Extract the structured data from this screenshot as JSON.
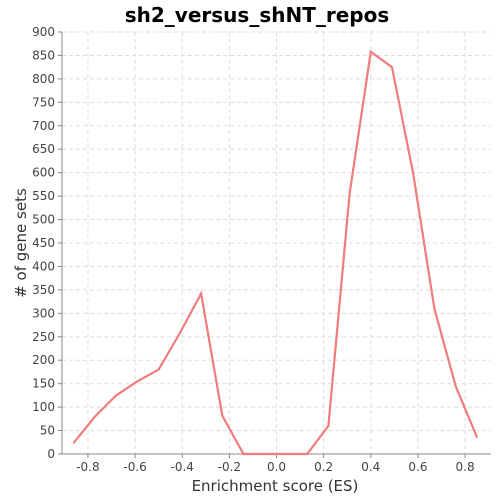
{
  "chart_data": {
    "type": "line",
    "title": "sh2_versus_shNT_repos",
    "xlabel": "Enrichment score (ES)",
    "ylabel": "# of gene sets",
    "xlim": [
      -0.91,
      0.91
    ],
    "ylim": [
      0,
      900
    ],
    "x_ticks": [
      "-0.8",
      "-0.6",
      "-0.4",
      "-0.2",
      "0.0",
      "0.2",
      "0.4",
      "0.6",
      "0.8"
    ],
    "y_ticks": [
      "0",
      "50",
      "100",
      "150",
      "200",
      "250",
      "300",
      "350",
      "400",
      "450",
      "500",
      "550",
      "600",
      "650",
      "700",
      "750",
      "800",
      "850",
      "900"
    ],
    "grid": true,
    "series": [
      {
        "color": "#f07c7c",
        "points": [
          {
            "x": -0.86,
            "y": 24
          },
          {
            "x": -0.77,
            "y": 80
          },
          {
            "x": -0.68,
            "y": 125
          },
          {
            "x": -0.59,
            "y": 155
          },
          {
            "x": -0.5,
            "y": 180
          },
          {
            "x": -0.41,
            "y": 258
          },
          {
            "x": -0.32,
            "y": 342
          },
          {
            "x": -0.23,
            "y": 82
          },
          {
            "x": -0.14,
            "y": 0
          },
          {
            "x": -0.05,
            "y": 0
          },
          {
            "x": 0.04,
            "y": 0
          },
          {
            "x": 0.13,
            "y": 0
          },
          {
            "x": 0.22,
            "y": 60
          },
          {
            "x": 0.31,
            "y": 555
          },
          {
            "x": 0.4,
            "y": 858
          },
          {
            "x": 0.49,
            "y": 825
          },
          {
            "x": 0.58,
            "y": 598
          },
          {
            "x": 0.67,
            "y": 310
          },
          {
            "x": 0.76,
            "y": 145
          },
          {
            "x": 0.85,
            "y": 36
          }
        ]
      }
    ]
  }
}
